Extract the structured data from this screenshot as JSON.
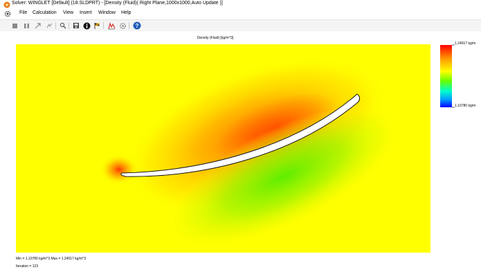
{
  "window": {
    "title": "Solver: WINGLET [Default] (18.SLDPRT) - [Density (Fluid)( Right Plane,1000x1000,Auto Update )]",
    "app_icon": "solidworks-icon"
  },
  "menu": {
    "icon": "gear-icon",
    "items": [
      "File",
      "Calculation",
      "View",
      "Insert",
      "Window",
      "Help"
    ]
  },
  "toolbar": {
    "buttons": [
      {
        "name": "stop-button",
        "icon": "stop-icon"
      },
      {
        "name": "pause-button",
        "icon": "pause-icon"
      },
      {
        "name": "insert-goal-plot-button",
        "icon": "arrow-up-right-icon"
      },
      {
        "name": "refresh-button",
        "icon": "refresh-icon"
      },
      {
        "name": "zoom-button",
        "icon": "magnifier-icon"
      },
      {
        "name": "save-button",
        "icon": "save-icon"
      },
      {
        "name": "info-button",
        "icon": "info-icon"
      },
      {
        "name": "goals-button",
        "icon": "flag-icon"
      },
      {
        "name": "cut-plot-button",
        "icon": "cut-plot-icon"
      },
      {
        "name": "settings-button",
        "icon": "gear-icon"
      },
      {
        "name": "help-button",
        "icon": "help-icon"
      }
    ]
  },
  "plot": {
    "title": "Density (Fluid) [kg/m^3]",
    "legend_max": "1.24017 kg/m",
    "legend_min": "1.10780 kg/m",
    "colors": {
      "background": "#ffff00",
      "high": "#ff0000",
      "mid_high": "#ff8000",
      "mid": "#80ff00",
      "low": "#0000ff",
      "body": "#ffffff"
    }
  },
  "status": {
    "minmax": "Min = 1.10780 kg/m^3  Max = 1.24017 kg/m^3",
    "iteration": "Iteration = 123"
  }
}
